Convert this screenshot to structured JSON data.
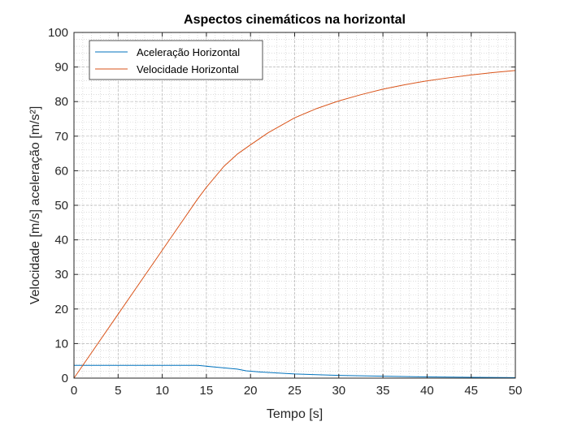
{
  "chart_data": {
    "type": "line",
    "title": "Aspectos cinemáticos na horizontal",
    "xlabel": "Tempo [s]",
    "ylabel": "Velocidade [m/s] aceleração [m/s²]",
    "xlim": [
      0,
      50
    ],
    "ylim": [
      0,
      100
    ],
    "xticks": [
      0,
      5,
      10,
      15,
      20,
      25,
      30,
      35,
      40,
      45,
      50
    ],
    "yticks": [
      0,
      10,
      20,
      30,
      40,
      50,
      60,
      70,
      80,
      90,
      100
    ],
    "grid": "major-and-minor",
    "legend_position": "top-left",
    "series": [
      {
        "name": "Aceleração Horizontal",
        "color": "#0072BD",
        "x": [
          0,
          5,
          10,
          14,
          16,
          18.5,
          19.5,
          21,
          25,
          30,
          35,
          40,
          45,
          50
        ],
        "y": [
          3.7,
          3.7,
          3.7,
          3.7,
          3.2,
          2.6,
          2.1,
          1.8,
          1.2,
          0.8,
          0.55,
          0.35,
          0.22,
          0.15
        ]
      },
      {
        "name": "Velocidade Horizontal",
        "color": "#D95319",
        "x": [
          0,
          2,
          5,
          10,
          14,
          15,
          17,
          18.5,
          20,
          22,
          25,
          27.5,
          30,
          32.5,
          35,
          37.5,
          40,
          42.5,
          45,
          47.5,
          50
        ],
        "y": [
          0,
          7.4,
          18.5,
          37,
          51.8,
          55.2,
          61.3,
          64.8,
          67.5,
          71.0,
          75.3,
          78.0,
          80.2,
          82.0,
          83.6,
          84.9,
          86.0,
          86.9,
          87.7,
          88.4,
          89.0
        ]
      }
    ]
  }
}
